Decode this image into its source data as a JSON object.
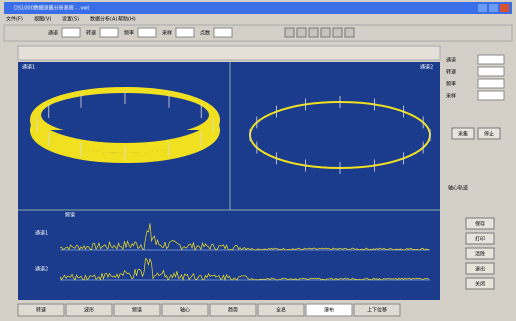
{
  "window": {
    "title": "DS1000数据采集分析系统 - .vwt"
  },
  "menu": [
    "文件(F)",
    "视图(V)",
    "设置(S)",
    "数据分析(A)",
    "帮助(H)"
  ],
  "toolbar": [
    "通道",
    "转速",
    "频率",
    "采样",
    "点数"
  ],
  "plots": {
    "left": {
      "label": "通道1"
    },
    "right": {
      "label": "通道2"
    },
    "spectrum": {
      "label": "频谱",
      "left_labels": [
        "通道1",
        "通道2"
      ]
    }
  },
  "sidebar": {
    "fields": [
      "通道",
      "转速",
      "频率",
      "采样"
    ],
    "top_buttons": [
      "采集",
      "停止"
    ],
    "section": "轴心轨迹",
    "bottom_buttons": [
      "保存",
      "打印",
      "清除",
      "退出",
      "关闭"
    ]
  },
  "tabs": [
    "转速",
    "波形",
    "频谱",
    "轴心",
    "趋势",
    "全息",
    "瀑布",
    "上下位移"
  ]
}
